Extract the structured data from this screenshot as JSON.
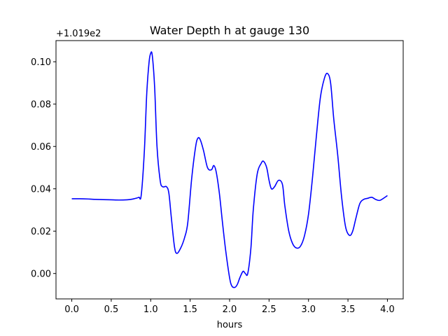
{
  "chart_data": {
    "type": "line",
    "title": "Water Depth h at gauge 130",
    "xlabel": "hours",
    "ylabel": "",
    "offset_label": "+1.019e2",
    "xlim": [
      -0.2,
      4.2
    ],
    "ylim": [
      -0.012,
      0.11
    ],
    "xticks": [
      0.0,
      0.5,
      1.0,
      1.5,
      2.0,
      2.5,
      3.0,
      3.5,
      4.0
    ],
    "xtick_labels": [
      "0.0",
      "0.5",
      "1.0",
      "1.5",
      "2.0",
      "2.5",
      "3.0",
      "3.5",
      "4.0"
    ],
    "yticks": [
      0.0,
      0.02,
      0.04,
      0.06,
      0.08,
      0.1
    ],
    "ytick_labels": [
      "0.00",
      "0.02",
      "0.04",
      "0.06",
      "0.08",
      "0.10"
    ],
    "grid": false,
    "line_color": "#0000ff",
    "series": [
      {
        "x": [
          0.0,
          0.1,
          0.2,
          0.3,
          0.4,
          0.5,
          0.6,
          0.7,
          0.75,
          0.8,
          0.85,
          0.88,
          0.92,
          0.95,
          0.98,
          1.0,
          1.02,
          1.05,
          1.08,
          1.12,
          1.15,
          1.2,
          1.23,
          1.26,
          1.3,
          1.33,
          1.38,
          1.43,
          1.47,
          1.52,
          1.57,
          1.6,
          1.63,
          1.67,
          1.72,
          1.77,
          1.8,
          1.83,
          1.87,
          1.91,
          1.95,
          2.0,
          2.03,
          2.07,
          2.1,
          2.13,
          2.17,
          2.2,
          2.23,
          2.27,
          2.3,
          2.35,
          2.4,
          2.43,
          2.47,
          2.5,
          2.53,
          2.57,
          2.62,
          2.67,
          2.7,
          2.75,
          2.8,
          2.85,
          2.9,
          2.95,
          3.0,
          3.05,
          3.1,
          3.15,
          3.2,
          3.24,
          3.28,
          3.32,
          3.37,
          3.42,
          3.47,
          3.52,
          3.56,
          3.6,
          3.65,
          3.7,
          3.75,
          3.8,
          3.85,
          3.9,
          3.95,
          4.0
        ],
        "y": [
          0.0353,
          0.0353,
          0.0352,
          0.035,
          0.0349,
          0.0348,
          0.0347,
          0.0348,
          0.035,
          0.0354,
          0.036,
          0.037,
          0.058,
          0.085,
          0.1,
          0.104,
          0.103,
          0.088,
          0.06,
          0.044,
          0.041,
          0.041,
          0.038,
          0.027,
          0.013,
          0.0095,
          0.012,
          0.017,
          0.024,
          0.045,
          0.06,
          0.064,
          0.063,
          0.058,
          0.05,
          0.049,
          0.051,
          0.048,
          0.038,
          0.024,
          0.011,
          -0.002,
          -0.006,
          -0.0065,
          -0.005,
          -0.002,
          0.001,
          0.0,
          0.0,
          0.012,
          0.03,
          0.047,
          0.052,
          0.053,
          0.05,
          0.044,
          0.04,
          0.041,
          0.044,
          0.042,
          0.032,
          0.02,
          0.014,
          0.012,
          0.013,
          0.018,
          0.028,
          0.045,
          0.065,
          0.083,
          0.092,
          0.0945,
          0.09,
          0.073,
          0.056,
          0.036,
          0.022,
          0.018,
          0.02,
          0.026,
          0.033,
          0.035,
          0.0355,
          0.036,
          0.035,
          0.0345,
          0.0355,
          0.0368
        ]
      }
    ]
  }
}
